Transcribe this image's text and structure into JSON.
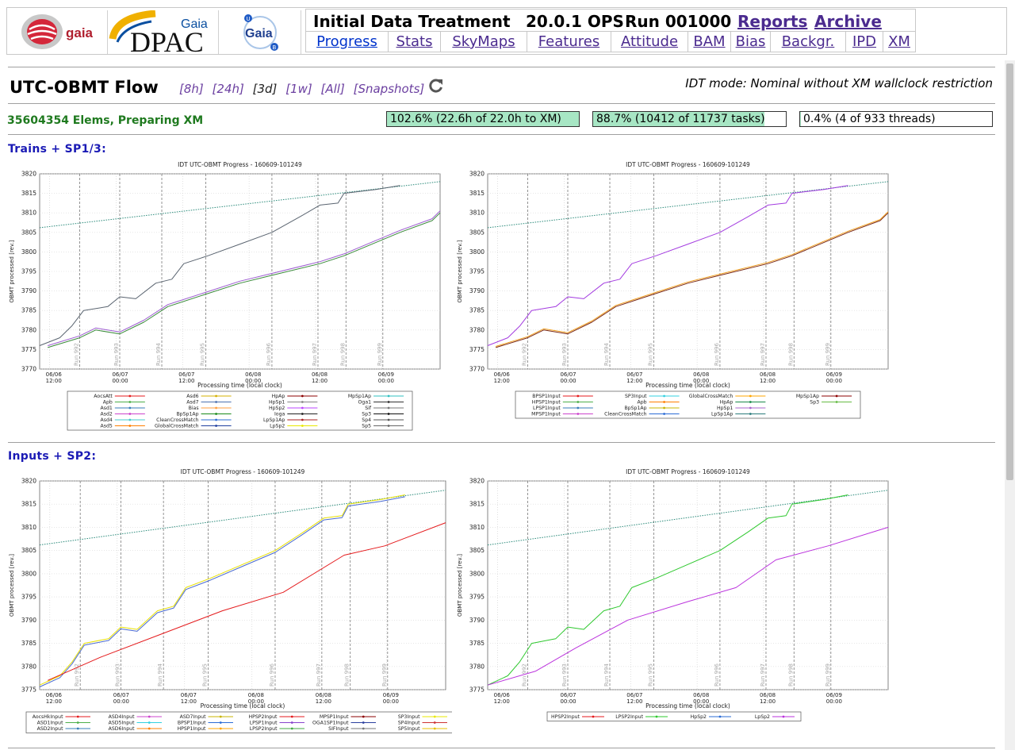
{
  "header": {
    "logos": [
      "gaia",
      "Gaia DPAC",
      "Gaia"
    ],
    "title": "Initial Data Treatment",
    "version": "20.0.1 OPS",
    "run": "Run 001000",
    "links": [
      "Reports",
      "Archive"
    ],
    "nav": [
      {
        "label": "Progress",
        "active": true
      },
      {
        "label": "Stats"
      },
      {
        "label": "SkyMaps"
      },
      {
        "label": "Features"
      },
      {
        "label": "Attitude"
      },
      {
        "label": "BAM"
      },
      {
        "label": "Bias"
      },
      {
        "label": "Backgr."
      },
      {
        "label": "IPD"
      },
      {
        "label": "XM"
      }
    ]
  },
  "page": {
    "title": "UTC-OBMT Flow",
    "ranges": [
      "[8h]",
      "[24h]",
      "[3d]",
      "[1w]",
      "[All]",
      "[Snapshots]"
    ],
    "current_range": "[3d]",
    "refresh_icon": "refresh-icon",
    "mode": "IDT mode: Nominal without XM wallclock restriction"
  },
  "status": {
    "elems": "35604354 Elems, Preparing XM",
    "bars": [
      {
        "text": "102.6% (22.6h of 22.0h to XM)",
        "fraction": 1.0
      },
      {
        "text": "88.7% (10412 of 11737 tasks)",
        "fraction": 0.887
      },
      {
        "text": "0.4% (4 of 933 threads)",
        "fraction": 0.004
      }
    ]
  },
  "sections": [
    {
      "title": "Trains + SP1/3:"
    },
    {
      "title": "Inputs + SP2:"
    }
  ],
  "plot_common": {
    "title": "IDT UTC-OBMT Progress  -  160609-101249",
    "ylabel": "OBMT processed [rev.]",
    "xlabel": "Processing time (local clock)",
    "xticks": [
      "06/06\n12:00",
      "06/07\n00:00",
      "06/07\n12:00",
      "06/08\n00:00",
      "06/08\n12:00",
      "06/09\n00:00"
    ],
    "runs": [
      "Run 992",
      "Run 993",
      "Run 994",
      "Run 995",
      "Run 996",
      "Run 997",
      "Run 998",
      "Run 999"
    ],
    "colors": {
      "accent_green": "#1a7a1a",
      "link_purple": "#4b2b8f",
      "section_blue": "#1a1ab5",
      "bar_fill": "#a7e6c4"
    }
  },
  "chart_data": [
    {
      "type": "scatter",
      "title": "IDT UTC-OBMT Progress  -  160609-101249",
      "xlabel": "Processing time (local clock)",
      "ylabel": "OBMT processed [rev.]",
      "ylim": [
        3770,
        3820
      ],
      "yticks": [
        3770,
        3775,
        3780,
        3785,
        3790,
        3795,
        3800,
        3805,
        3810,
        3815,
        3820
      ],
      "legend": [
        "AocsAtt",
        "Apb",
        "Asd1",
        "Asd2",
        "Asd4",
        "Asd5",
        "Asd6",
        "Asd7",
        "Bias",
        "BpSp1Ap",
        "CleanCrossMatch",
        "GlobalCrossMatch",
        "HpAp",
        "HpSp1",
        "HpSp2",
        "Ioga",
        "LpSp1Ap",
        "LpSp2",
        "MpSp1Ap",
        "Oga1",
        "Sif",
        "Sp3",
        "Sp4",
        "Sp5"
      ],
      "legend_colors": [
        "#e41a1c",
        "#4daf4a",
        "#377eb8",
        "#cc44cc",
        "#44cccc",
        "#ff7f00",
        "#d4b000",
        "#4c72b0",
        "#ff9e3d",
        "#1a8a1a",
        "#2b6cd6",
        "#1f3f9f",
        "#8b0000",
        "#888888",
        "#bb44ff",
        "#222222",
        "#aa2222",
        "#e8e800",
        "#30c0c0",
        "#333333",
        "#777777",
        "#111111",
        "#555555",
        "#666666"
      ],
      "legend_cols": 4
    },
    {
      "type": "scatter",
      "title": "IDT UTC-OBMT Progress  -  160609-101249",
      "xlabel": "Processing time (local clock)",
      "ylabel": "OBMT processed [rev.]",
      "ylim": [
        3770,
        3820
      ],
      "yticks": [
        3770,
        3775,
        3780,
        3785,
        3790,
        3795,
        3800,
        3805,
        3810,
        3815,
        3820
      ],
      "legend": [
        "BPSP1Input",
        "HPSP1Input",
        "LPSP1Input",
        "MPSP1Input",
        "SP3Input",
        "Apb",
        "BpSp1Ap",
        "CleanCrossMatch",
        "GlobalCrossMatch",
        "HpAp",
        "HpSp1",
        "LpSp1Ap",
        "MpSp1Ap",
        "Sp3"
      ],
      "legend_colors": [
        "#e41a1c",
        "#4daf4a",
        "#377eb8",
        "#cc44cc",
        "#33d0e0",
        "#ff7f00",
        "#c8b400",
        "#2b6cd6",
        "#ffa500",
        "#1a8a4a",
        "#aa66cc",
        "#2b7c7c",
        "#8b0000",
        "#66bb44"
      ],
      "legend_cols": 4
    },
    {
      "type": "scatter",
      "title": "IDT UTC-OBMT Progress  -  160609-101249",
      "xlabel": "Processing time (local clock)",
      "ylabel": "OBMT processed [rev.]",
      "ylim": [
        3775,
        3820
      ],
      "yticks": [
        3775,
        3780,
        3785,
        3790,
        3795,
        3800,
        3805,
        3810,
        3815,
        3820
      ],
      "legend": [
        "AocsHkInput",
        "ASD1Input",
        "ASD2Input",
        "ASD4Input",
        "ASD5Input",
        "ASD6Input",
        "ASD7Input",
        "BPSP1Input",
        "HPSP1Input",
        "HPSP2Input",
        "LPSP1Input",
        "LPSP2Input",
        "MPSP1Input",
        "OGA1SP1Input",
        "SIFInput",
        "SP3Input",
        "SP4Input",
        "SP5Input"
      ],
      "legend_colors": [
        "#e41a1c",
        "#4daf4a",
        "#377eb8",
        "#cc44cc",
        "#33d0e0",
        "#ff7f00",
        "#c8b400",
        "#2b6cd6",
        "#ffa500",
        "#e41a1c",
        "#8844cc",
        "#44aa44",
        "#8b0000",
        "#2b3f9f",
        "#777777",
        "#e8e800",
        "#cc3333",
        "#e8c000"
      ],
      "legend_cols": 6
    },
    {
      "type": "scatter",
      "title": "IDT UTC-OBMT Progress  -  160609-101249",
      "xlabel": "Processing time (local clock)",
      "ylabel": "OBMT processed [rev.]",
      "ylim": [
        3775,
        3820
      ],
      "yticks": [
        3775,
        3780,
        3785,
        3790,
        3795,
        3800,
        3805,
        3810,
        3815,
        3820
      ],
      "legend": [
        "HPSP2Input",
        "LPSP2Input",
        "HpSp2",
        "LpSp2"
      ],
      "legend_colors": [
        "#e41a1c",
        "#2ec82e",
        "#2b6cd6",
        "#bb33dd"
      ],
      "legend_cols": 4
    }
  ]
}
